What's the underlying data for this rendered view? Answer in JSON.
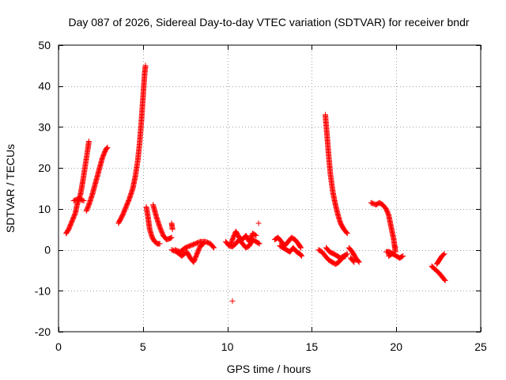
{
  "chart_data": {
    "type": "scatter",
    "title": "Day 087 of 2026, Sidereal Day-to-day VTEC variation (SDTVAR) for receiver bndr",
    "xlabel": "GPS time / hours",
    "ylabel": "SDTVAR / TECUs",
    "xlim": [
      0,
      25
    ],
    "ylim": [
      -20,
      50
    ],
    "xticks": [
      0,
      5,
      10,
      15,
      20,
      25
    ],
    "yticks": [
      -20,
      -10,
      0,
      10,
      20,
      30,
      40,
      50
    ],
    "grid": true,
    "marker": "+",
    "color": "#ff0000",
    "segments": [
      [
        [
          0.45,
          4.0
        ],
        [
          0.6,
          5.0
        ],
        [
          0.8,
          7.0
        ],
        [
          1.0,
          9.0
        ],
        [
          1.1,
          11.0
        ],
        [
          1.3,
          13.5
        ],
        [
          1.45,
          17.0
        ],
        [
          1.6,
          21.0
        ],
        [
          1.75,
          25.0
        ],
        [
          1.8,
          26.5
        ]
      ],
      [
        [
          0.9,
          12.0
        ],
        [
          1.2,
          12.5
        ],
        [
          1.5,
          12.0
        ]
      ],
      [
        [
          1.65,
          9.5
        ],
        [
          1.8,
          11.0
        ],
        [
          2.0,
          13.5
        ],
        [
          2.2,
          16.5
        ],
        [
          2.4,
          19.5
        ],
        [
          2.6,
          22.5
        ],
        [
          2.8,
          24.5
        ],
        [
          2.9,
          25.0
        ]
      ],
      [
        [
          3.55,
          6.5
        ],
        [
          3.8,
          8.5
        ],
        [
          4.0,
          10.5
        ],
        [
          4.2,
          12.5
        ],
        [
          4.4,
          15.0
        ],
        [
          4.55,
          18.0
        ],
        [
          4.7,
          22.0
        ],
        [
          4.8,
          26.0
        ],
        [
          4.9,
          31.0
        ],
        [
          5.0,
          37.0
        ],
        [
          5.1,
          43.0
        ],
        [
          5.15,
          45.0
        ]
      ],
      [
        [
          5.2,
          10.5
        ],
        [
          5.3,
          8.0
        ],
        [
          5.4,
          5.0
        ],
        [
          5.55,
          3.0
        ],
        [
          5.7,
          2.0
        ],
        [
          5.85,
          1.5
        ],
        [
          6.0,
          1.5
        ]
      ],
      [
        [
          5.6,
          11.0
        ],
        [
          5.8,
          8.0
        ],
        [
          6.0,
          5.5
        ],
        [
          6.2,
          3.5
        ],
        [
          6.4,
          2.5
        ],
        [
          6.6,
          2.8
        ],
        [
          6.7,
          3.0
        ]
      ],
      [
        [
          6.7,
          6.5
        ],
        [
          6.75,
          5.0
        ]
      ],
      [
        [
          6.7,
          0.0
        ],
        [
          7.0,
          -0.5
        ],
        [
          7.3,
          -1.5
        ],
        [
          7.6,
          -0.5
        ],
        [
          7.8,
          -2.0
        ],
        [
          8.0,
          -3.0
        ],
        [
          8.2,
          -1.0
        ],
        [
          8.4,
          1.0
        ],
        [
          8.6,
          1.5
        ]
      ],
      [
        [
          6.9,
          0.0
        ],
        [
          7.2,
          -0.5
        ],
        [
          7.5,
          0.5
        ],
        [
          7.8,
          1.0
        ],
        [
          8.1,
          1.5
        ],
        [
          8.4,
          2.0
        ],
        [
          8.7,
          2.0
        ],
        [
          9.0,
          1.5
        ],
        [
          9.2,
          0.5
        ]
      ],
      [
        [
          9.9,
          2.0
        ],
        [
          10.1,
          1.0
        ],
        [
          10.3,
          0.8
        ],
        [
          10.5,
          1.5
        ],
        [
          10.7,
          2.5
        ],
        [
          10.9,
          1.5
        ],
        [
          11.1,
          0.5
        ],
        [
          11.3,
          1.0
        ],
        [
          11.5,
          2.5
        ],
        [
          11.7,
          2.0
        ],
        [
          11.9,
          1.5
        ]
      ],
      [
        [
          10.2,
          1.5
        ],
        [
          10.5,
          4.5
        ],
        [
          10.7,
          3.0
        ],
        [
          10.9,
          2.5
        ],
        [
          11.1,
          3.5
        ],
        [
          11.3,
          2.0
        ],
        [
          11.5,
          4.0
        ],
        [
          11.7,
          3.5
        ]
      ],
      [
        [
          11.85,
          6.5
        ]
      ],
      [
        [
          10.3,
          -12.5
        ]
      ],
      [
        [
          12.8,
          2.5
        ],
        [
          13.0,
          3.0
        ],
        [
          13.2,
          2.0
        ],
        [
          13.4,
          1.0
        ],
        [
          13.6,
          2.0
        ],
        [
          13.8,
          3.0
        ],
        [
          14.0,
          2.5
        ],
        [
          14.2,
          1.5
        ],
        [
          14.35,
          0.5
        ]
      ],
      [
        [
          13.1,
          1.0
        ],
        [
          13.3,
          0.5
        ],
        [
          13.5,
          0.0
        ],
        [
          13.7,
          -0.5
        ],
        [
          13.9,
          0.5
        ],
        [
          14.1,
          -0.5
        ],
        [
          14.3,
          -1.0
        ],
        [
          14.4,
          -1.5
        ]
      ],
      [
        [
          15.4,
          0.0
        ],
        [
          15.6,
          -0.5
        ],
        [
          15.8,
          -1.5
        ],
        [
          16.0,
          -2.5
        ],
        [
          16.2,
          -3.0
        ],
        [
          16.4,
          -3.5
        ],
        [
          16.6,
          -3.0
        ],
        [
          16.8,
          -2.0
        ],
        [
          17.0,
          -1.5
        ]
      ],
      [
        [
          15.85,
          0.5
        ],
        [
          16.05,
          -0.5
        ],
        [
          16.3,
          -1.0
        ],
        [
          16.5,
          -1.5
        ],
        [
          16.7,
          -2.0
        ],
        [
          16.9,
          -1.5
        ],
        [
          17.1,
          -1.0
        ]
      ],
      [
        [
          15.8,
          33.0
        ],
        [
          15.9,
          28.0
        ],
        [
          16.0,
          23.0
        ],
        [
          16.1,
          18.5
        ],
        [
          16.25,
          14.0
        ],
        [
          16.4,
          11.0
        ],
        [
          16.55,
          8.5
        ],
        [
          16.7,
          6.5
        ],
        [
          16.9,
          5.0
        ],
        [
          17.1,
          4.0
        ]
      ],
      [
        [
          17.2,
          0.5
        ],
        [
          17.4,
          -0.5
        ],
        [
          17.6,
          -2.0
        ],
        [
          17.8,
          -3.0
        ]
      ],
      [
        [
          17.3,
          -2.0
        ],
        [
          17.5,
          -3.0
        ]
      ],
      [
        [
          18.5,
          11.5
        ],
        [
          18.8,
          11.0
        ],
        [
          19.0,
          11.5
        ],
        [
          19.2,
          11.0
        ],
        [
          19.4,
          10.0
        ],
        [
          19.55,
          8.5
        ],
        [
          19.65,
          6.5
        ],
        [
          19.75,
          4.5
        ],
        [
          19.85,
          2.5
        ],
        [
          19.9,
          1.0
        ],
        [
          19.95,
          -0.5
        ]
      ],
      [
        [
          19.9,
          1.0
        ],
        [
          19.95,
          0.5
        ]
      ],
      [
        [
          19.4,
          -0.5
        ],
        [
          19.6,
          -0.5
        ],
        [
          19.8,
          -1.0
        ],
        [
          20.0,
          -1.5
        ],
        [
          20.2,
          -2.0
        ],
        [
          20.4,
          -1.5
        ]
      ],
      [
        [
          19.55,
          -1.5
        ],
        [
          19.75,
          -1.0
        ]
      ],
      [
        [
          22.1,
          -4.0
        ],
        [
          22.3,
          -4.8
        ],
        [
          22.5,
          -5.5
        ],
        [
          22.7,
          -6.5
        ],
        [
          22.9,
          -7.5
        ]
      ],
      [
        [
          22.4,
          -3.5
        ],
        [
          22.55,
          -2.5
        ],
        [
          22.7,
          -1.5
        ],
        [
          22.85,
          -1.0
        ]
      ]
    ]
  }
}
